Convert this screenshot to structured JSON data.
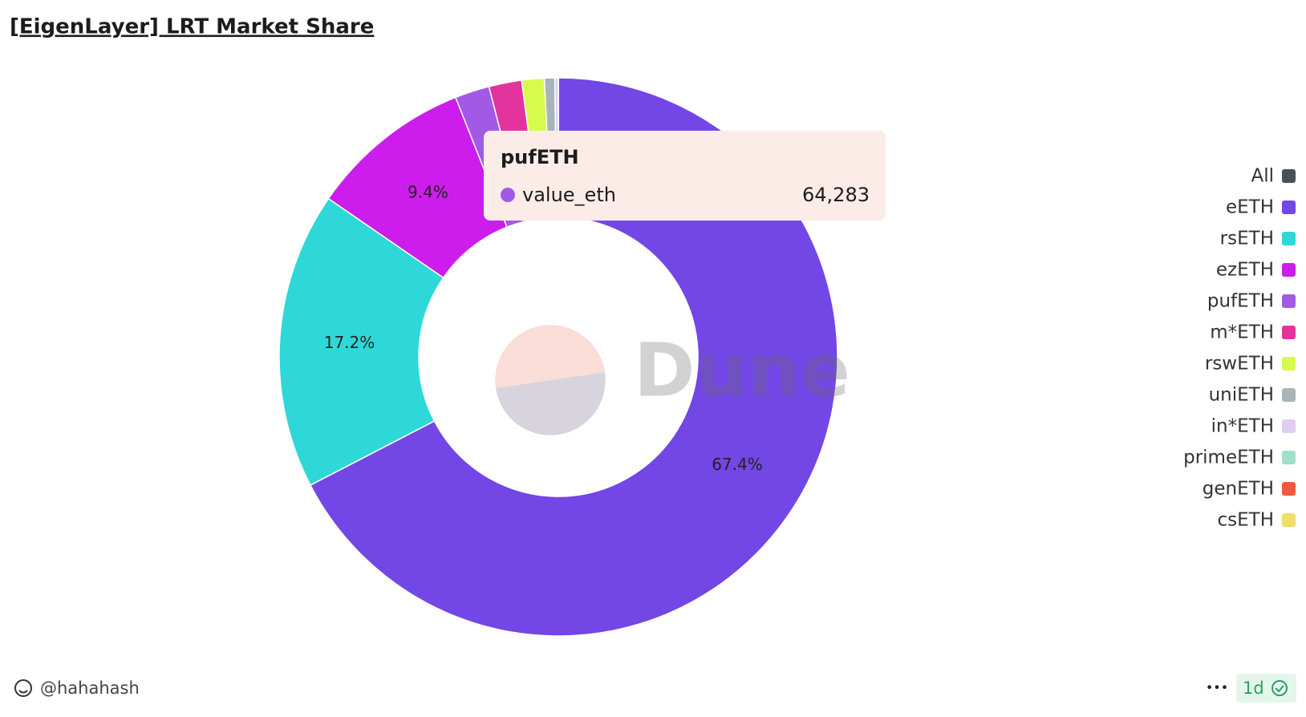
{
  "header": {
    "title": "[EigenLayer] LRT Market Share"
  },
  "chart_data": {
    "type": "pie",
    "donut": true,
    "categories": [
      "eETH",
      "rsETH",
      "ezETH",
      "pufETH",
      "m*ETH",
      "rswETH",
      "uniETH",
      "in*ETH",
      "primeETH",
      "genETH",
      "csETH"
    ],
    "values": [
      67.4,
      17.2,
      9.4,
      2.0,
      1.9,
      1.3,
      0.6,
      0.2,
      0,
      0,
      0
    ],
    "value_labels": [
      "67.4%",
      "17.2%",
      "9.4%",
      null,
      null,
      null,
      null,
      null,
      null,
      null,
      null
    ],
    "colors": [
      "#7346e6",
      "#2ed8d8",
      "#cc1ded",
      "#a25ae6",
      "#e3339f",
      "#d6fb4c",
      "#a8b5b8",
      "#e0cdef",
      "#9ee0c8",
      "#ee5a3a",
      "#f2dc6a"
    ],
    "legend_all": {
      "label": "All",
      "color": "#4b4f56"
    },
    "legend": "right",
    "watermark": "Dune",
    "tooltip": {
      "title": "pufETH",
      "series": "value_eth",
      "value": {
        "value": 64283,
        "label": "64,283"
      }
    }
  },
  "footer": {
    "author": "@hahahash",
    "more": "•••",
    "age": "1d"
  }
}
